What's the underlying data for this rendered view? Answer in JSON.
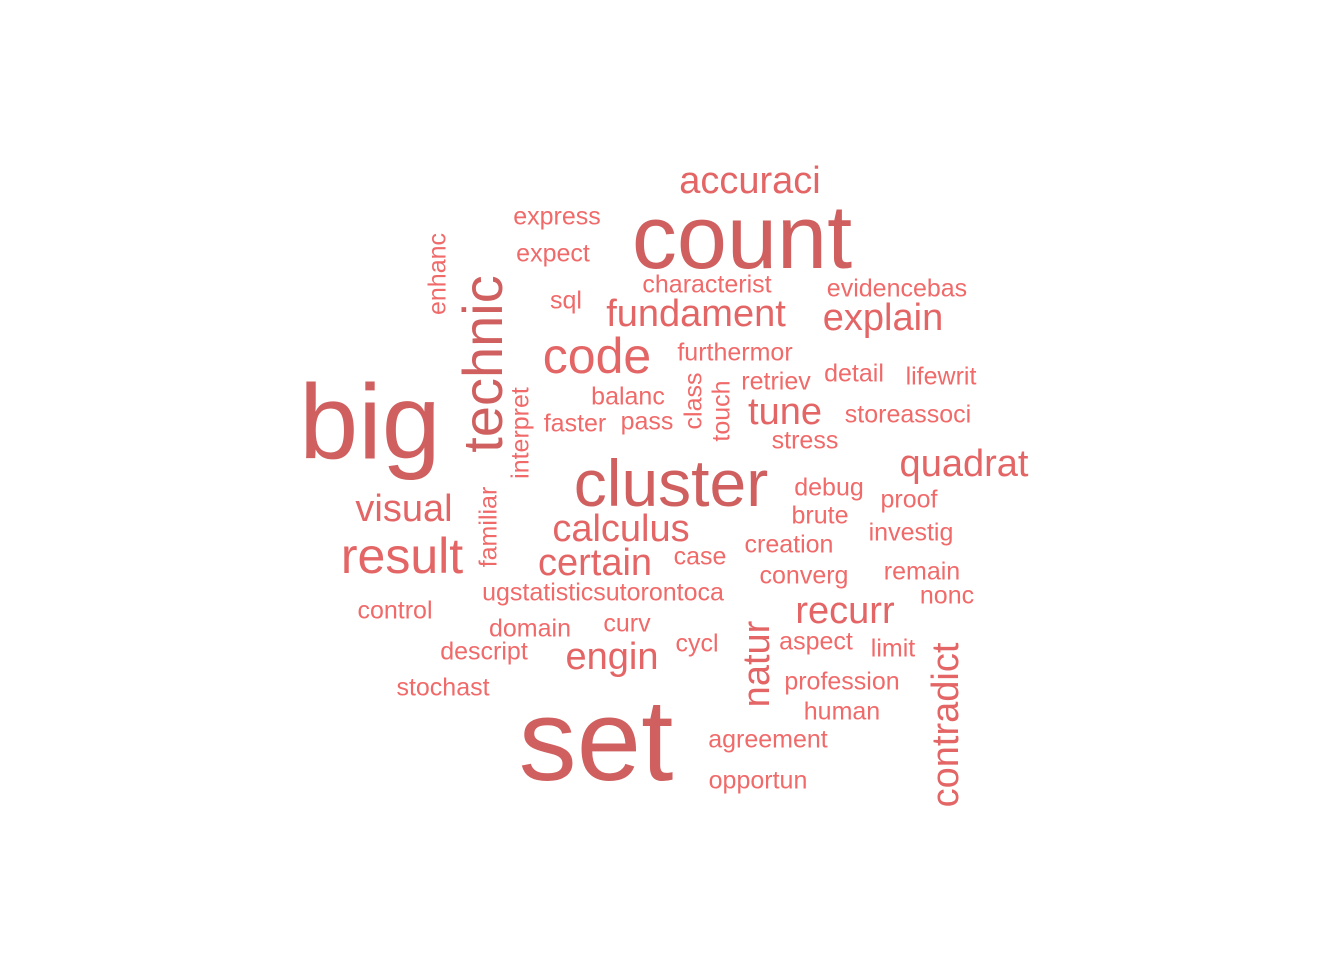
{
  "palette": {
    "large": "#d05f5f",
    "medium": "#e46565",
    "small": "#f06a6a"
  },
  "words": [
    {
      "text": "set",
      "weight": 10
    },
    {
      "text": "big",
      "weight": 9
    },
    {
      "text": "count",
      "weight": 8
    },
    {
      "text": "cluster",
      "weight": 7
    },
    {
      "text": "technic",
      "weight": 6
    },
    {
      "text": "result",
      "weight": 5
    },
    {
      "text": "code",
      "weight": 5
    },
    {
      "text": "fundament",
      "weight": 4
    },
    {
      "text": "calculus",
      "weight": 4
    },
    {
      "text": "certain",
      "weight": 4
    },
    {
      "text": "quadrat",
      "weight": 4
    },
    {
      "text": "recurr",
      "weight": 4
    },
    {
      "text": "explain",
      "weight": 4
    },
    {
      "text": "accuraci",
      "weight": 4
    },
    {
      "text": "engin",
      "weight": 4
    },
    {
      "text": "visual",
      "weight": 4
    },
    {
      "text": "contradict",
      "weight": 4
    },
    {
      "text": "natur",
      "weight": 4
    },
    {
      "text": "tune",
      "weight": 4
    },
    {
      "text": "express",
      "weight": 2
    },
    {
      "text": "expect",
      "weight": 2
    },
    {
      "text": "characterist",
      "weight": 2
    },
    {
      "text": "evidencebas",
      "weight": 2
    },
    {
      "text": "sql",
      "weight": 2
    },
    {
      "text": "furthermor",
      "weight": 2
    },
    {
      "text": "retriev",
      "weight": 2
    },
    {
      "text": "detail",
      "weight": 2
    },
    {
      "text": "lifewrit",
      "weight": 2
    },
    {
      "text": "balanc",
      "weight": 2
    },
    {
      "text": "faster",
      "weight": 2
    },
    {
      "text": "pass",
      "weight": 2
    },
    {
      "text": "storeassoci",
      "weight": 2
    },
    {
      "text": "stress",
      "weight": 2
    },
    {
      "text": "debug",
      "weight": 2
    },
    {
      "text": "proof",
      "weight": 2
    },
    {
      "text": "brute",
      "weight": 2
    },
    {
      "text": "investig",
      "weight": 2
    },
    {
      "text": "creation",
      "weight": 2
    },
    {
      "text": "case",
      "weight": 2
    },
    {
      "text": "converg",
      "weight": 2
    },
    {
      "text": "remain",
      "weight": 2
    },
    {
      "text": "ugstatisticsutorontoca",
      "weight": 2
    },
    {
      "text": "nonc",
      "weight": 2
    },
    {
      "text": "control",
      "weight": 2
    },
    {
      "text": "domain",
      "weight": 2
    },
    {
      "text": "curv",
      "weight": 2
    },
    {
      "text": "cycl",
      "weight": 2
    },
    {
      "text": "aspect",
      "weight": 2
    },
    {
      "text": "limit",
      "weight": 2
    },
    {
      "text": "descript",
      "weight": 2
    },
    {
      "text": "stochast",
      "weight": 2
    },
    {
      "text": "profession",
      "weight": 2
    },
    {
      "text": "human",
      "weight": 2
    },
    {
      "text": "agreement",
      "weight": 2
    },
    {
      "text": "opportun",
      "weight": 2
    },
    {
      "text": "enhanc",
      "weight": 2
    },
    {
      "text": "interpret",
      "weight": 2
    },
    {
      "text": "familiar",
      "weight": 2
    },
    {
      "text": "class",
      "weight": 2
    },
    {
      "text": "touch",
      "weight": 2
    }
  ]
}
